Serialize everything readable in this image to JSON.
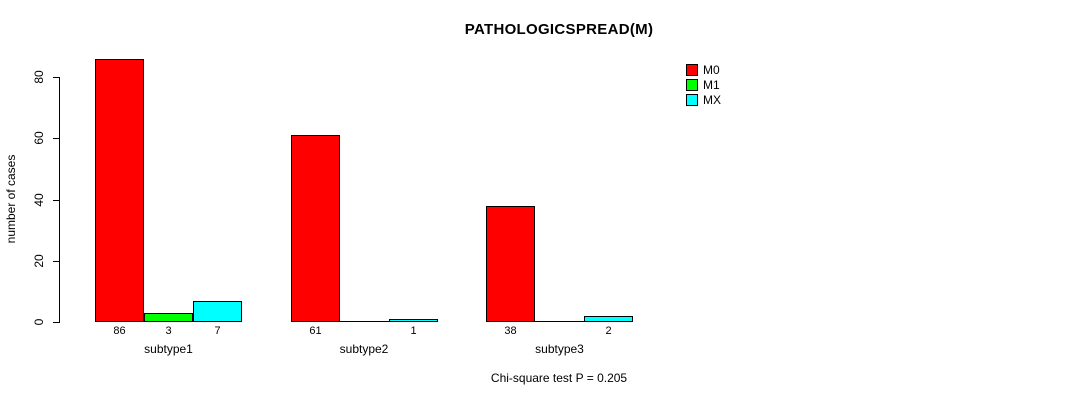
{
  "chart_data": {
    "type": "bar",
    "title": "PATHOLOGICSPREAD(M)",
    "subtitle": "Chi-square test P = 0.205",
    "ylabel": "number of cases",
    "xlabel": "",
    "ylim": [
      0,
      80
    ],
    "yticks": [
      0,
      20,
      40,
      60,
      80
    ],
    "grid": false,
    "legend_position": "top-right",
    "categories": [
      "subtype1",
      "subtype2",
      "subtype3"
    ],
    "series": [
      {
        "name": "M0",
        "color": "#FF0000",
        "values": [
          86,
          61,
          38
        ]
      },
      {
        "name": "M1",
        "color": "#00FF00",
        "values": [
          3,
          0,
          0
        ]
      },
      {
        "name": "MX",
        "color": "#00FFFF",
        "values": [
          7,
          1,
          2
        ]
      }
    ],
    "value_labels": {
      "M0": [
        "86",
        "61",
        "38"
      ],
      "M1": [
        "3",
        "",
        ""
      ],
      "MX": [
        "7",
        "1",
        "2"
      ]
    },
    "colors": {
      "axis": "#000000",
      "text": "#000000",
      "background": "#FFFFFF"
    }
  }
}
